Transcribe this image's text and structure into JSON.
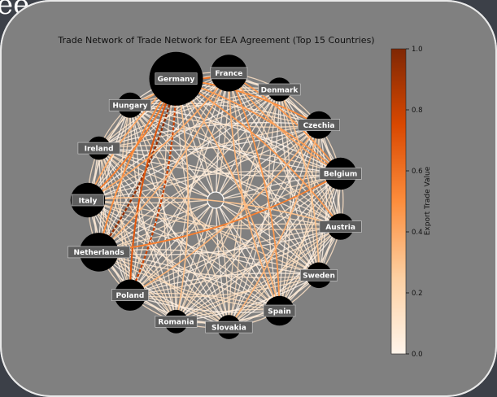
{
  "background": {
    "partial_text": "ee"
  },
  "chart_data": {
    "type": "network",
    "title": "Trade Network of Trade Network for EEA Agreement (Top 15 Countries)",
    "nodes": [
      {
        "name": "Germany",
        "size": 1.0
      },
      {
        "name": "France",
        "size": 0.55
      },
      {
        "name": "Denmark",
        "size": 0.2
      },
      {
        "name": "Czechia",
        "size": 0.3
      },
      {
        "name": "Belgium",
        "size": 0.42
      },
      {
        "name": "Austria",
        "size": 0.27
      },
      {
        "name": "Sweden",
        "size": 0.25
      },
      {
        "name": "Spain",
        "size": 0.36
      },
      {
        "name": "Slovakia",
        "size": 0.21
      },
      {
        "name": "Romania",
        "size": 0.19
      },
      {
        "name": "Poland",
        "size": 0.4
      },
      {
        "name": "Netherlands",
        "size": 0.6
      },
      {
        "name": "Italy",
        "size": 0.49
      },
      {
        "name": "Ireland",
        "size": 0.19
      },
      {
        "name": "Hungary",
        "size": 0.24
      }
    ],
    "strong_edges": [
      {
        "from": "Netherlands",
        "to": "Germany",
        "value": 0.95
      },
      {
        "from": "Poland",
        "to": "Germany",
        "value": 0.8
      },
      {
        "from": "Germany",
        "to": "Poland",
        "value": 0.7
      },
      {
        "from": "Netherlands",
        "to": "Belgium",
        "value": 0.55
      },
      {
        "from": "Germany",
        "to": "France",
        "value": 0.6
      },
      {
        "from": "Italy",
        "to": "Germany",
        "value": 0.55
      },
      {
        "from": "Czechia",
        "to": "Germany",
        "value": 0.5
      },
      {
        "from": "Belgium",
        "to": "France",
        "value": 0.45
      },
      {
        "from": "Spain",
        "to": "France",
        "value": 0.45
      },
      {
        "from": "Austria",
        "to": "Germany",
        "value": 0.45
      },
      {
        "from": "Hungary",
        "to": "Germany",
        "value": 0.4
      },
      {
        "from": "Slovakia",
        "to": "Czechia",
        "value": 0.35
      },
      {
        "from": "Poland",
        "to": "Czechia",
        "value": 0.35
      },
      {
        "from": "Germany",
        "to": "Netherlands",
        "value": 0.5
      },
      {
        "from": "Italy",
        "to": "France",
        "value": 0.4
      },
      {
        "from": "Belgium",
        "to": "Germany",
        "value": 0.45
      },
      {
        "from": "Sweden",
        "to": "Denmark",
        "value": 0.3
      },
      {
        "from": "Spain",
        "to": "Germany",
        "value": 0.35
      },
      {
        "from": "Germany",
        "to": "Italy",
        "value": 0.4
      },
      {
        "from": "Romania",
        "to": "Germany",
        "value": 0.3
      },
      {
        "from": "France",
        "to": "Spain",
        "value": 0.35
      },
      {
        "from": "France",
        "to": "Belgium",
        "value": 0.4
      },
      {
        "from": "Austria",
        "to": "Italy",
        "value": 0.3
      },
      {
        "from": "Netherlands",
        "to": "France",
        "value": 0.35
      }
    ],
    "colorbar": {
      "label": "Export Trade Value",
      "range": [
        0.0,
        1.0
      ],
      "ticks": [
        "0.0",
        "0.2",
        "0.4",
        "0.6",
        "0.8",
        "1.0"
      ],
      "colormap": "Oranges"
    }
  }
}
